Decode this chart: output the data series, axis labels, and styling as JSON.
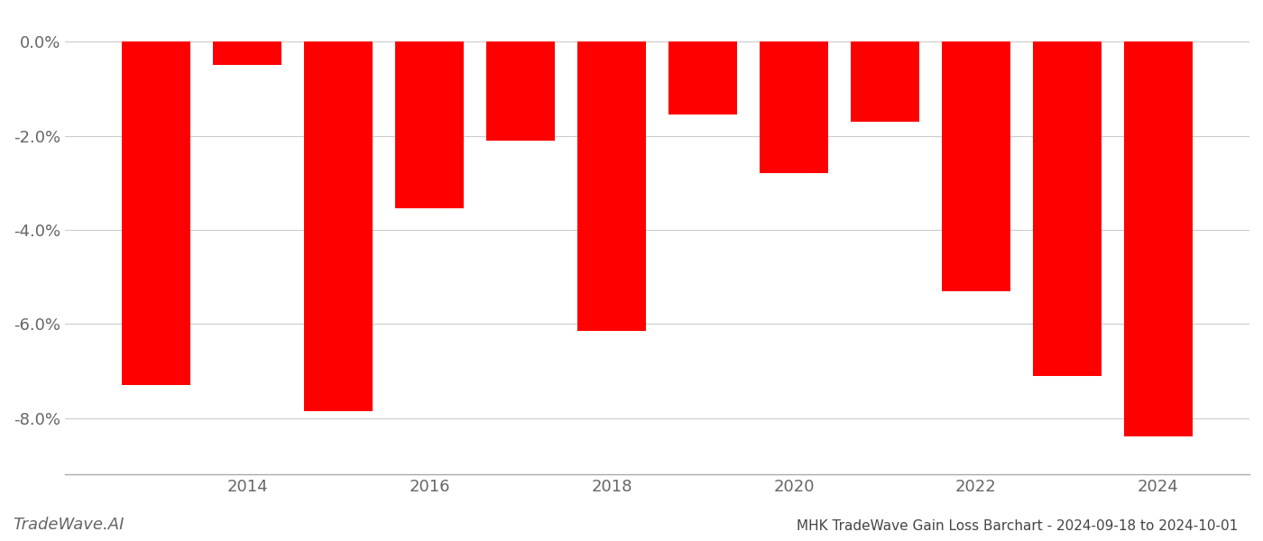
{
  "years": [
    2013,
    2014,
    2015,
    2016,
    2017,
    2018,
    2019,
    2020,
    2021,
    2022,
    2023,
    2024
  ],
  "values": [
    -7.3,
    -0.5,
    -7.85,
    -3.55,
    -2.1,
    -6.15,
    -1.55,
    -2.8,
    -1.7,
    -5.3,
    -7.1,
    -8.4
  ],
  "bar_color": "#ff0000",
  "title": "MHK TradeWave Gain Loss Barchart - 2024-09-18 to 2024-10-01",
  "watermark": "TradeWave.AI",
  "ylim": [
    -9.2,
    0.6
  ],
  "yticks": [
    0.0,
    -2.0,
    -4.0,
    -6.0,
    -8.0
  ],
  "xtick_years": [
    2014,
    2016,
    2018,
    2020,
    2022,
    2024
  ],
  "background_color": "#ffffff",
  "grid_color": "#cccccc",
  "axis_color": "#aaaaaa",
  "text_color": "#666666",
  "title_color": "#444444",
  "watermark_color": "#666666"
}
